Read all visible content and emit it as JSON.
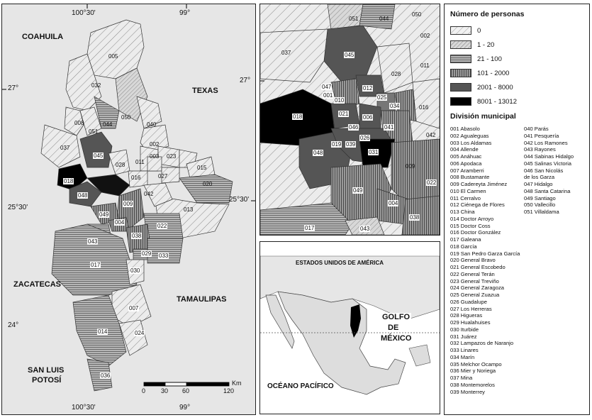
{
  "main_map": {
    "coord_labels": {
      "lon_top_1": "100°30'",
      "lon_top_2": "99°",
      "lon_bottom_1": "100°30'",
      "lon_bottom_2": "99°",
      "lat_left_1": "27°",
      "lat_left_2": "25°30'",
      "lat_left_3": "24°",
      "lat_right_1": "25°30'"
    },
    "regions": [
      "COAHUILA",
      "TEXAS",
      "ZACATECAS",
      "TAMAULIPAS",
      "SAN LUIS",
      "POTOSÍ"
    ],
    "codes": [
      "005",
      "032",
      "008",
      "050",
      "051",
      "044",
      "002",
      "040",
      "037",
      "045",
      "028",
      "011",
      "023",
      "003",
      "015",
      "027",
      "016",
      "020",
      "018",
      "048",
      "042",
      "013",
      "009",
      "049",
      "004",
      "022",
      "043",
      "038",
      "017",
      "029",
      "033",
      "030",
      "007",
      "014",
      "024",
      "036"
    ],
    "scale": {
      "ticks": [
        "0",
        "30",
        "60",
        "120"
      ],
      "unit": "Km"
    }
  },
  "zoom_map": {
    "lat_label": "27°",
    "codes": [
      "051",
      "044",
      "050",
      "002",
      "037",
      "045",
      "028",
      "011",
      "047",
      "001",
      "012",
      "010",
      "025",
      "016",
      "034",
      "021",
      "006",
      "046",
      "041",
      "018",
      "026",
      "042",
      "019",
      "039",
      "031",
      "048",
      "009",
      "049",
      "004",
      "022",
      "038",
      "017",
      "043"
    ]
  },
  "locator_map": {
    "country": "ESTADOS UNIDOS DE AMÉRICA",
    "gulf_1": "GOLFO",
    "gulf_2": "DE",
    "gulf_3": "MÉXICO",
    "ocean": "OCÉANO PACÍFICO"
  },
  "legend": {
    "title": "Número de personas",
    "classes": [
      {
        "label": "0",
        "pattern": "light-hatch"
      },
      {
        "label": "1 - 20",
        "pattern": "dense-hatch"
      },
      {
        "label": "21 - 100",
        "pattern": "horizontal-lines"
      },
      {
        "label": "101 - 2000",
        "pattern": "vertical-lines"
      },
      {
        "label": "2001 - 8000",
        "pattern": "dark-grey"
      },
      {
        "label": "8001 - 13012",
        "pattern": "black"
      }
    ],
    "division_title": "División municipal",
    "municipios_col1": [
      "001 Abasolo",
      "002 Agualeguas",
      "003 Los Aldamas",
      "004 Allende",
      "005 Anáhuac",
      "006 Apodaca",
      "007 Aramberri",
      "008 Bustamante",
      "009 Cadereyta Jiménez",
      "010 El Carmen",
      "011 Cerralvo",
      "012 Ciénega de Flores",
      "013 China",
      "014 Doctor Arroyo",
      "015 Doctor Coss",
      "016 Doctor González",
      "017 Galeana",
      "018 García",
      "019 San Pedro Garza García",
      "020 General Bravo",
      "021 General Escobedo",
      "022 General Terán",
      "023 General Treviño",
      "024 General Zaragoza",
      "025 General Zuazua",
      "026 Guadalupe",
      "027 Los Herreras",
      "028 Higueras",
      "029 Hualahuises",
      "030 Iturbide",
      "031 Juárez",
      "032 Lampazos de Naranjo",
      "033 Linares",
      "034 Marín",
      "035 Melchor Ocampo",
      "036 Mier y Noriega",
      "037 Mina",
      "038 Montemorelos",
      "039 Monterrey"
    ],
    "municipios_col2": [
      "040 Parás",
      "041 Pesquería",
      "042 Los Ramones",
      "043 Rayones",
      "044 Sabinas Hidalgo",
      "045 Salinas Victoria",
      "046 San Nicolás",
      "de los Garza",
      "047 Hidalgo",
      "048 Santa Catarina",
      "049 Santiago",
      "050 Vallecillo",
      "051 Villaldama"
    ]
  }
}
